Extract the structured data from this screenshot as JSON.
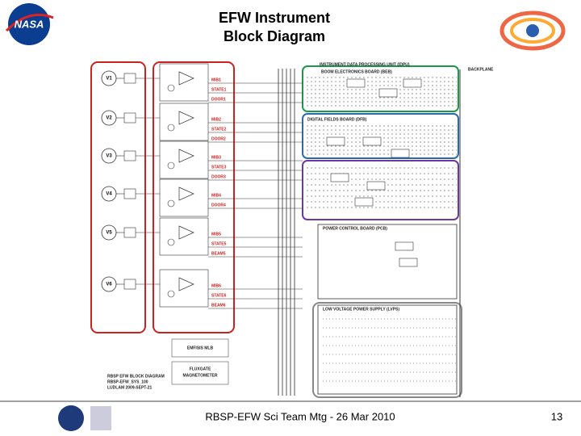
{
  "header": {
    "title_lines": [
      "EFW Instrument",
      "Block Diagram"
    ]
  },
  "logo": {
    "text": "NASA"
  },
  "diagram": {
    "sensors": [
      "V1",
      "V2",
      "V3",
      "V4",
      "V5",
      "V6"
    ],
    "preamp_labels": [
      [
        "MIB1",
        "STATE1",
        "DOOR1"
      ],
      [
        "MIB2",
        "STATE2",
        "DOOR2"
      ],
      [
        "MIB3",
        "STATE3",
        "DOOR3"
      ],
      [
        "MIB4",
        "DOOR4"
      ],
      [
        "MIB5",
        "STATE5",
        "BEAM5"
      ],
      [
        "MIB6",
        "STATE6",
        "BEAM6"
      ]
    ],
    "idpu": "INSTRUMENT DATA PROCESSING UNIT (IDPU)",
    "beb": "BOOM ELECTRONICS BOARD (BEB)",
    "dfb": "DIGITAL FIELDS BOARD (DFB)",
    "pcb": "POWER CONTROL BOARD (PCB)",
    "lvps": "LOW VOLTAGE POWER SUPPLY (LVPS)",
    "backplane": "BACKPLANE",
    "emfisis": "EMFISIS MLB",
    "fluxgate": [
      "FLUXGATE",
      "MAGNETOMETER"
    ],
    "notes": [
      "RBSP EFW BLOCK DIAGRAM",
      "RBSP-EFW_SYS_100",
      "LUDLAM 2009-SEPT-21"
    ]
  },
  "footer": {
    "text": "RBSP-EFW Sci Team Mtg - 26 Mar 2010",
    "page": "13"
  }
}
